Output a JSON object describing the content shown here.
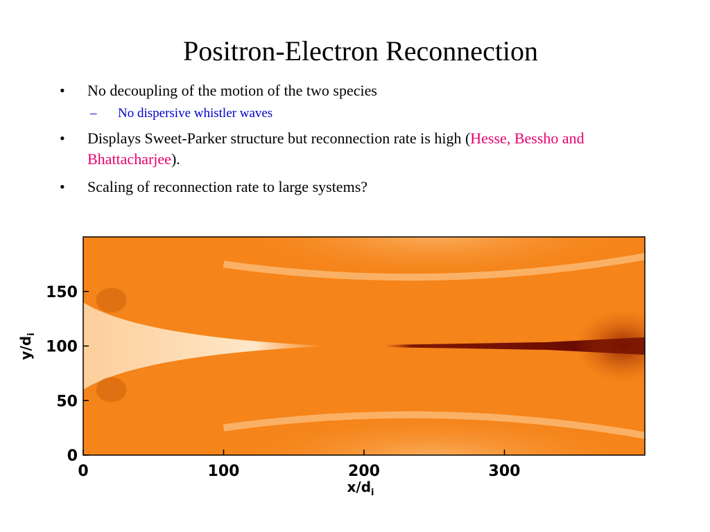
{
  "slide": {
    "title": "Positron-Electron Reconnection",
    "bullets": [
      {
        "text": "No decoupling of the motion of the two species",
        "sub": [
          {
            "text": "No dispersive whistler waves"
          }
        ]
      },
      {
        "text_before": "Displays Sweet-Parker structure but reconnection rate is high (",
        "citation": "Hesse, Bessho and Bhattacharjee",
        "text_after": ")."
      },
      {
        "text": "Scaling of reconnection rate to large systems?"
      }
    ],
    "bullet_char": "•",
    "sub_bullet_char": "–",
    "colors": {
      "sub_bullet": "#0000cc",
      "citation": "#e6006e"
    }
  },
  "chart_data": {
    "type": "heatmap",
    "title": "",
    "xlabel": "x/d",
    "xlabel_sub": "i",
    "ylabel": "y/d",
    "ylabel_sub": "i",
    "xlim": [
      0,
      400
    ],
    "ylim": [
      0,
      200
    ],
    "xticks": [
      "0",
      "100",
      "200",
      "300"
    ],
    "yticks": [
      "0",
      "50",
      "100",
      "150"
    ],
    "colormap": "orange",
    "colors": {
      "background": "#f5841a",
      "bright": "#ffe8c6",
      "dark": "#5a0000"
    },
    "features": [
      {
        "label": "bright current sheet",
        "x_range": [
          0,
          175
        ],
        "y": 100
      },
      {
        "label": "dark outflow jet",
        "x_range": [
          215,
          400
        ],
        "y": 100
      },
      {
        "label": "upper separatrix arc",
        "x_range": [
          100,
          400
        ],
        "y_range": [
          150,
          200
        ]
      },
      {
        "label": "lower separatrix arc",
        "x_range": [
          100,
          400
        ],
        "y_range": [
          0,
          50
        ]
      }
    ]
  }
}
